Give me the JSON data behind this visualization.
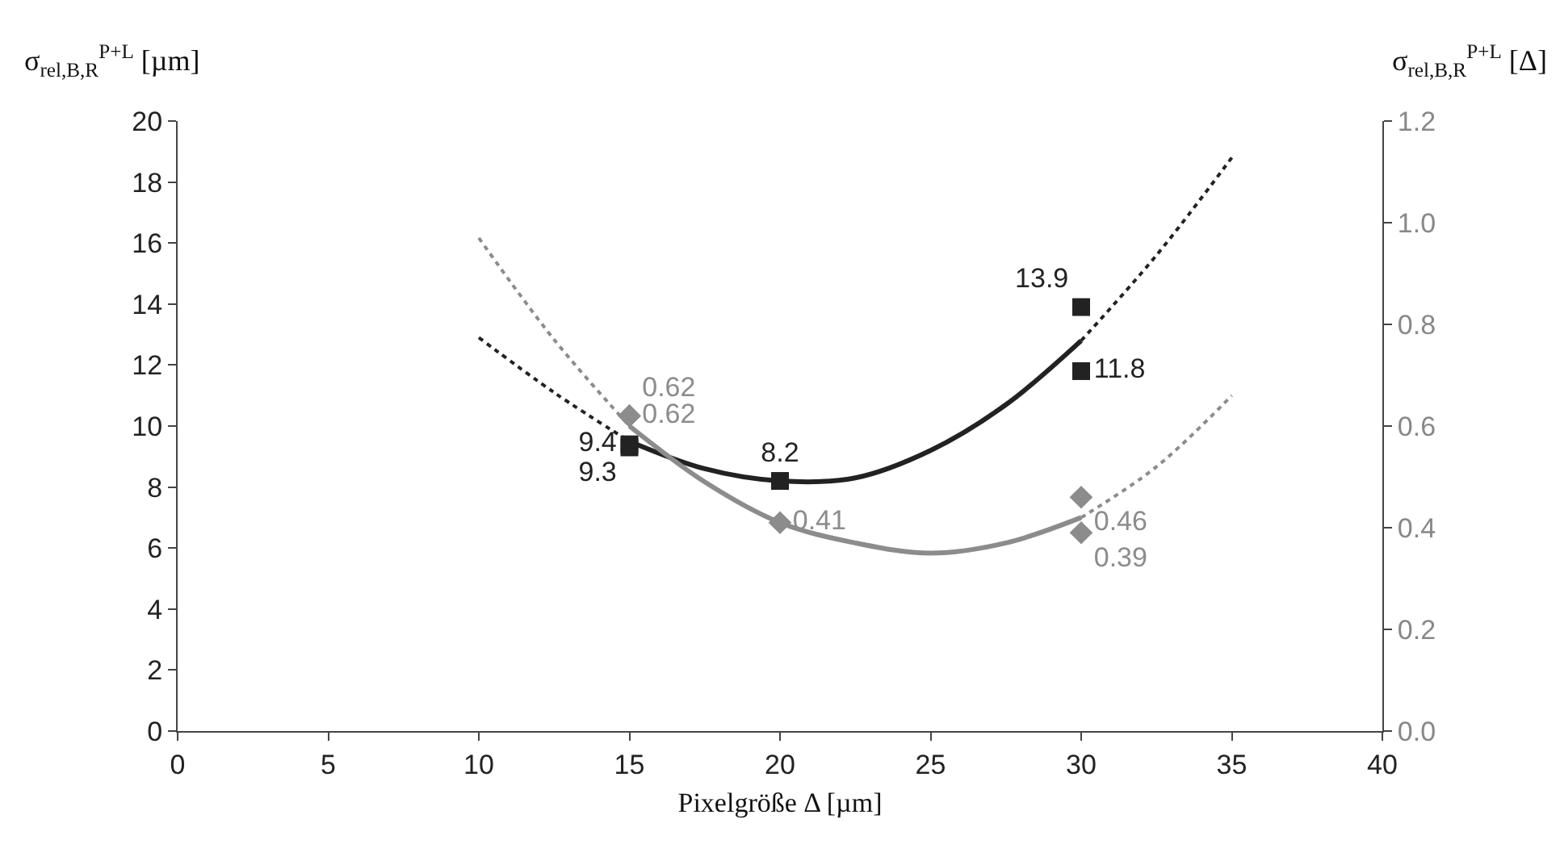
{
  "chart_data": {
    "type": "scatter",
    "xlabel": "Pixelgröße Δ [µm]",
    "ylabel": "σ$_{rel,B,R}$$^{P+L}$ [µm]",
    "y2label": "σ$_{rel,B,R}$$^{P+L}$ [Δ]",
    "xlim": [
      0,
      40
    ],
    "xticks": [
      0,
      5,
      10,
      15,
      20,
      25,
      30,
      35,
      40
    ],
    "ylim": [
      0,
      20
    ],
    "yticks": [
      0,
      2,
      4,
      6,
      8,
      10,
      12,
      14,
      16,
      18,
      20
    ],
    "y2lim": [
      0,
      1.2
    ],
    "y2ticks": [
      {
        "value": 0,
        "label": "0.0"
      },
      {
        "value": 0.2,
        "label": "0.2"
      },
      {
        "value": 0.4,
        "label": "0.4"
      },
      {
        "value": 0.6,
        "label": "0.6"
      },
      {
        "value": 0.8,
        "label": "0.8"
      },
      {
        "value": 1,
        "label": "1.0"
      },
      {
        "value": 1.2,
        "label": "1.2"
      }
    ],
    "grid": false,
    "series": [
      {
        "type": "line",
        "color": "#222222",
        "line_style": "dotted",
        "x": [
          10,
          12.5,
          15
        ],
        "values": [
          12.9,
          11.1,
          9.5
        ]
      },
      {
        "type": "line",
        "color": "#222222",
        "line_style": "solid",
        "x": [
          15,
          17.5,
          20,
          22.5,
          25,
          27.5,
          30
        ],
        "values": [
          9.5,
          8.6,
          8.2,
          8.3,
          9.2,
          10.7,
          12.8
        ]
      },
      {
        "type": "line",
        "color": "#222222",
        "line_style": "dotted",
        "x": [
          30,
          32.5,
          35
        ],
        "values": [
          12.8,
          15.6,
          18.8
        ]
      },
      {
        "type": "line",
        "color": "#8c8c8c",
        "axis": "y2",
        "line_style": "dotted",
        "x": [
          10,
          12.5,
          15
        ],
        "values": [
          0.97,
          0.77,
          0.6
        ]
      },
      {
        "type": "line",
        "color": "#8c8c8c",
        "axis": "y2",
        "line_style": "solid",
        "x": [
          15,
          17.5,
          20,
          22.5,
          25,
          27.5,
          30
        ],
        "values": [
          0.6,
          0.49,
          0.41,
          0.37,
          0.35,
          0.37,
          0.42
        ]
      },
      {
        "type": "line",
        "color": "#8c8c8c",
        "axis": "y2",
        "line_style": "dotted",
        "x": [
          30,
          32.5,
          35
        ],
        "values": [
          0.42,
          0.52,
          0.66
        ]
      },
      {
        "color": "#222222",
        "marker": "square",
        "x": [
          15,
          15,
          20,
          30,
          30
        ],
        "values": [
          9.4,
          9.3,
          8.2,
          13.9,
          11.8
        ],
        "value_labels": [
          "9.4",
          "9.3",
          "8.2",
          "13.9",
          "11.8"
        ]
      },
      {
        "color": "#8c8c8c",
        "axis": "y2",
        "marker": "diamond",
        "x": [
          15,
          15,
          20,
          30,
          30
        ],
        "values": [
          0.62,
          0.62,
          0.41,
          0.46,
          0.39
        ],
        "value_labels": [
          "0.62",
          "0.62",
          "0.41",
          "0.46",
          "0.39"
        ]
      }
    ]
  }
}
